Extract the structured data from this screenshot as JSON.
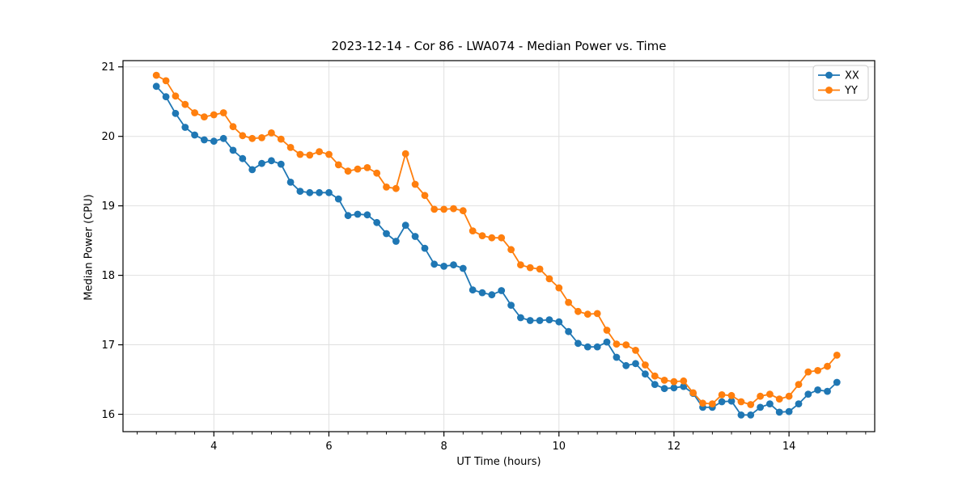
{
  "chart_data": {
    "type": "line",
    "title": "2023-12-14 - Cor 86 - LWA074 - Median Power vs. Time",
    "xlabel": "UT Time (hours)",
    "ylabel": "Median Power (CPU)",
    "xlim": [
      2.42,
      15.49
    ],
    "ylim": [
      15.75,
      21.09
    ],
    "xticks": [
      4,
      6,
      8,
      10,
      12,
      14
    ],
    "yticks": [
      16,
      17,
      18,
      19,
      20,
      21
    ],
    "x_minor_step": 0.3333333,
    "grid": true,
    "grid_color": "#e0e0e0",
    "axis_color": "#000000",
    "legend_position": "upper right",
    "marker": "circle",
    "x": [
      3.0,
      3.167,
      3.333,
      3.5,
      3.667,
      3.833,
      4.0,
      4.167,
      4.333,
      4.5,
      4.667,
      4.833,
      5.0,
      5.167,
      5.333,
      5.5,
      5.667,
      5.833,
      6.0,
      6.167,
      6.333,
      6.5,
      6.667,
      6.833,
      7.0,
      7.167,
      7.333,
      7.5,
      7.667,
      7.833,
      8.0,
      8.167,
      8.333,
      8.5,
      8.667,
      8.833,
      9.0,
      9.167,
      9.333,
      9.5,
      9.667,
      9.833,
      10.0,
      10.167,
      10.333,
      10.5,
      10.667,
      10.833,
      11.0,
      11.167,
      11.333,
      11.5,
      11.667,
      11.833,
      12.0,
      12.167,
      12.333,
      12.5,
      12.667,
      12.833,
      13.0,
      13.167,
      13.333,
      13.5,
      13.667,
      13.833,
      14.0,
      14.167,
      14.333,
      14.5,
      14.667,
      14.833
    ],
    "series": [
      {
        "name": "XX",
        "color": "#1f77b4",
        "values": [
          20.72,
          20.57,
          20.33,
          20.13,
          20.02,
          19.95,
          19.93,
          19.97,
          19.8,
          19.68,
          19.52,
          19.61,
          19.65,
          19.6,
          19.34,
          19.21,
          19.19,
          19.19,
          19.19,
          19.1,
          18.86,
          18.88,
          18.87,
          18.76,
          18.6,
          18.49,
          18.72,
          18.56,
          18.39,
          18.16,
          18.13,
          18.15,
          18.1,
          17.79,
          17.75,
          17.72,
          17.78,
          17.57,
          17.39,
          17.35,
          17.35,
          17.36,
          17.33,
          17.19,
          17.02,
          16.97,
          16.97,
          17.04,
          16.82,
          16.7,
          16.73,
          16.58,
          16.43,
          16.37,
          16.38,
          16.4,
          16.3,
          16.1,
          16.1,
          16.18,
          16.19,
          15.99,
          15.99,
          16.1,
          16.15,
          16.03,
          16.04,
          16.15,
          16.29,
          16.35,
          16.33,
          16.46
        ]
      },
      {
        "name": "YY",
        "color": "#ff7f0e",
        "values": [
          20.88,
          20.8,
          20.58,
          20.46,
          20.34,
          20.28,
          20.31,
          20.34,
          20.14,
          20.01,
          19.97,
          19.98,
          20.05,
          19.96,
          19.84,
          19.74,
          19.73,
          19.78,
          19.74,
          19.59,
          19.5,
          19.53,
          19.55,
          19.47,
          19.27,
          19.25,
          19.75,
          19.31,
          19.15,
          18.95,
          18.95,
          18.96,
          18.93,
          18.64,
          18.57,
          18.54,
          18.54,
          18.37,
          18.15,
          18.11,
          18.09,
          17.95,
          17.82,
          17.61,
          17.48,
          17.44,
          17.45,
          17.21,
          17.01,
          17.0,
          16.92,
          16.71,
          16.55,
          16.49,
          16.47,
          16.48,
          16.31,
          16.16,
          16.15,
          16.28,
          16.27,
          16.18,
          16.14,
          16.26,
          16.29,
          16.22,
          16.26,
          16.43,
          16.61,
          16.63,
          16.69,
          16.85
        ]
      }
    ]
  }
}
